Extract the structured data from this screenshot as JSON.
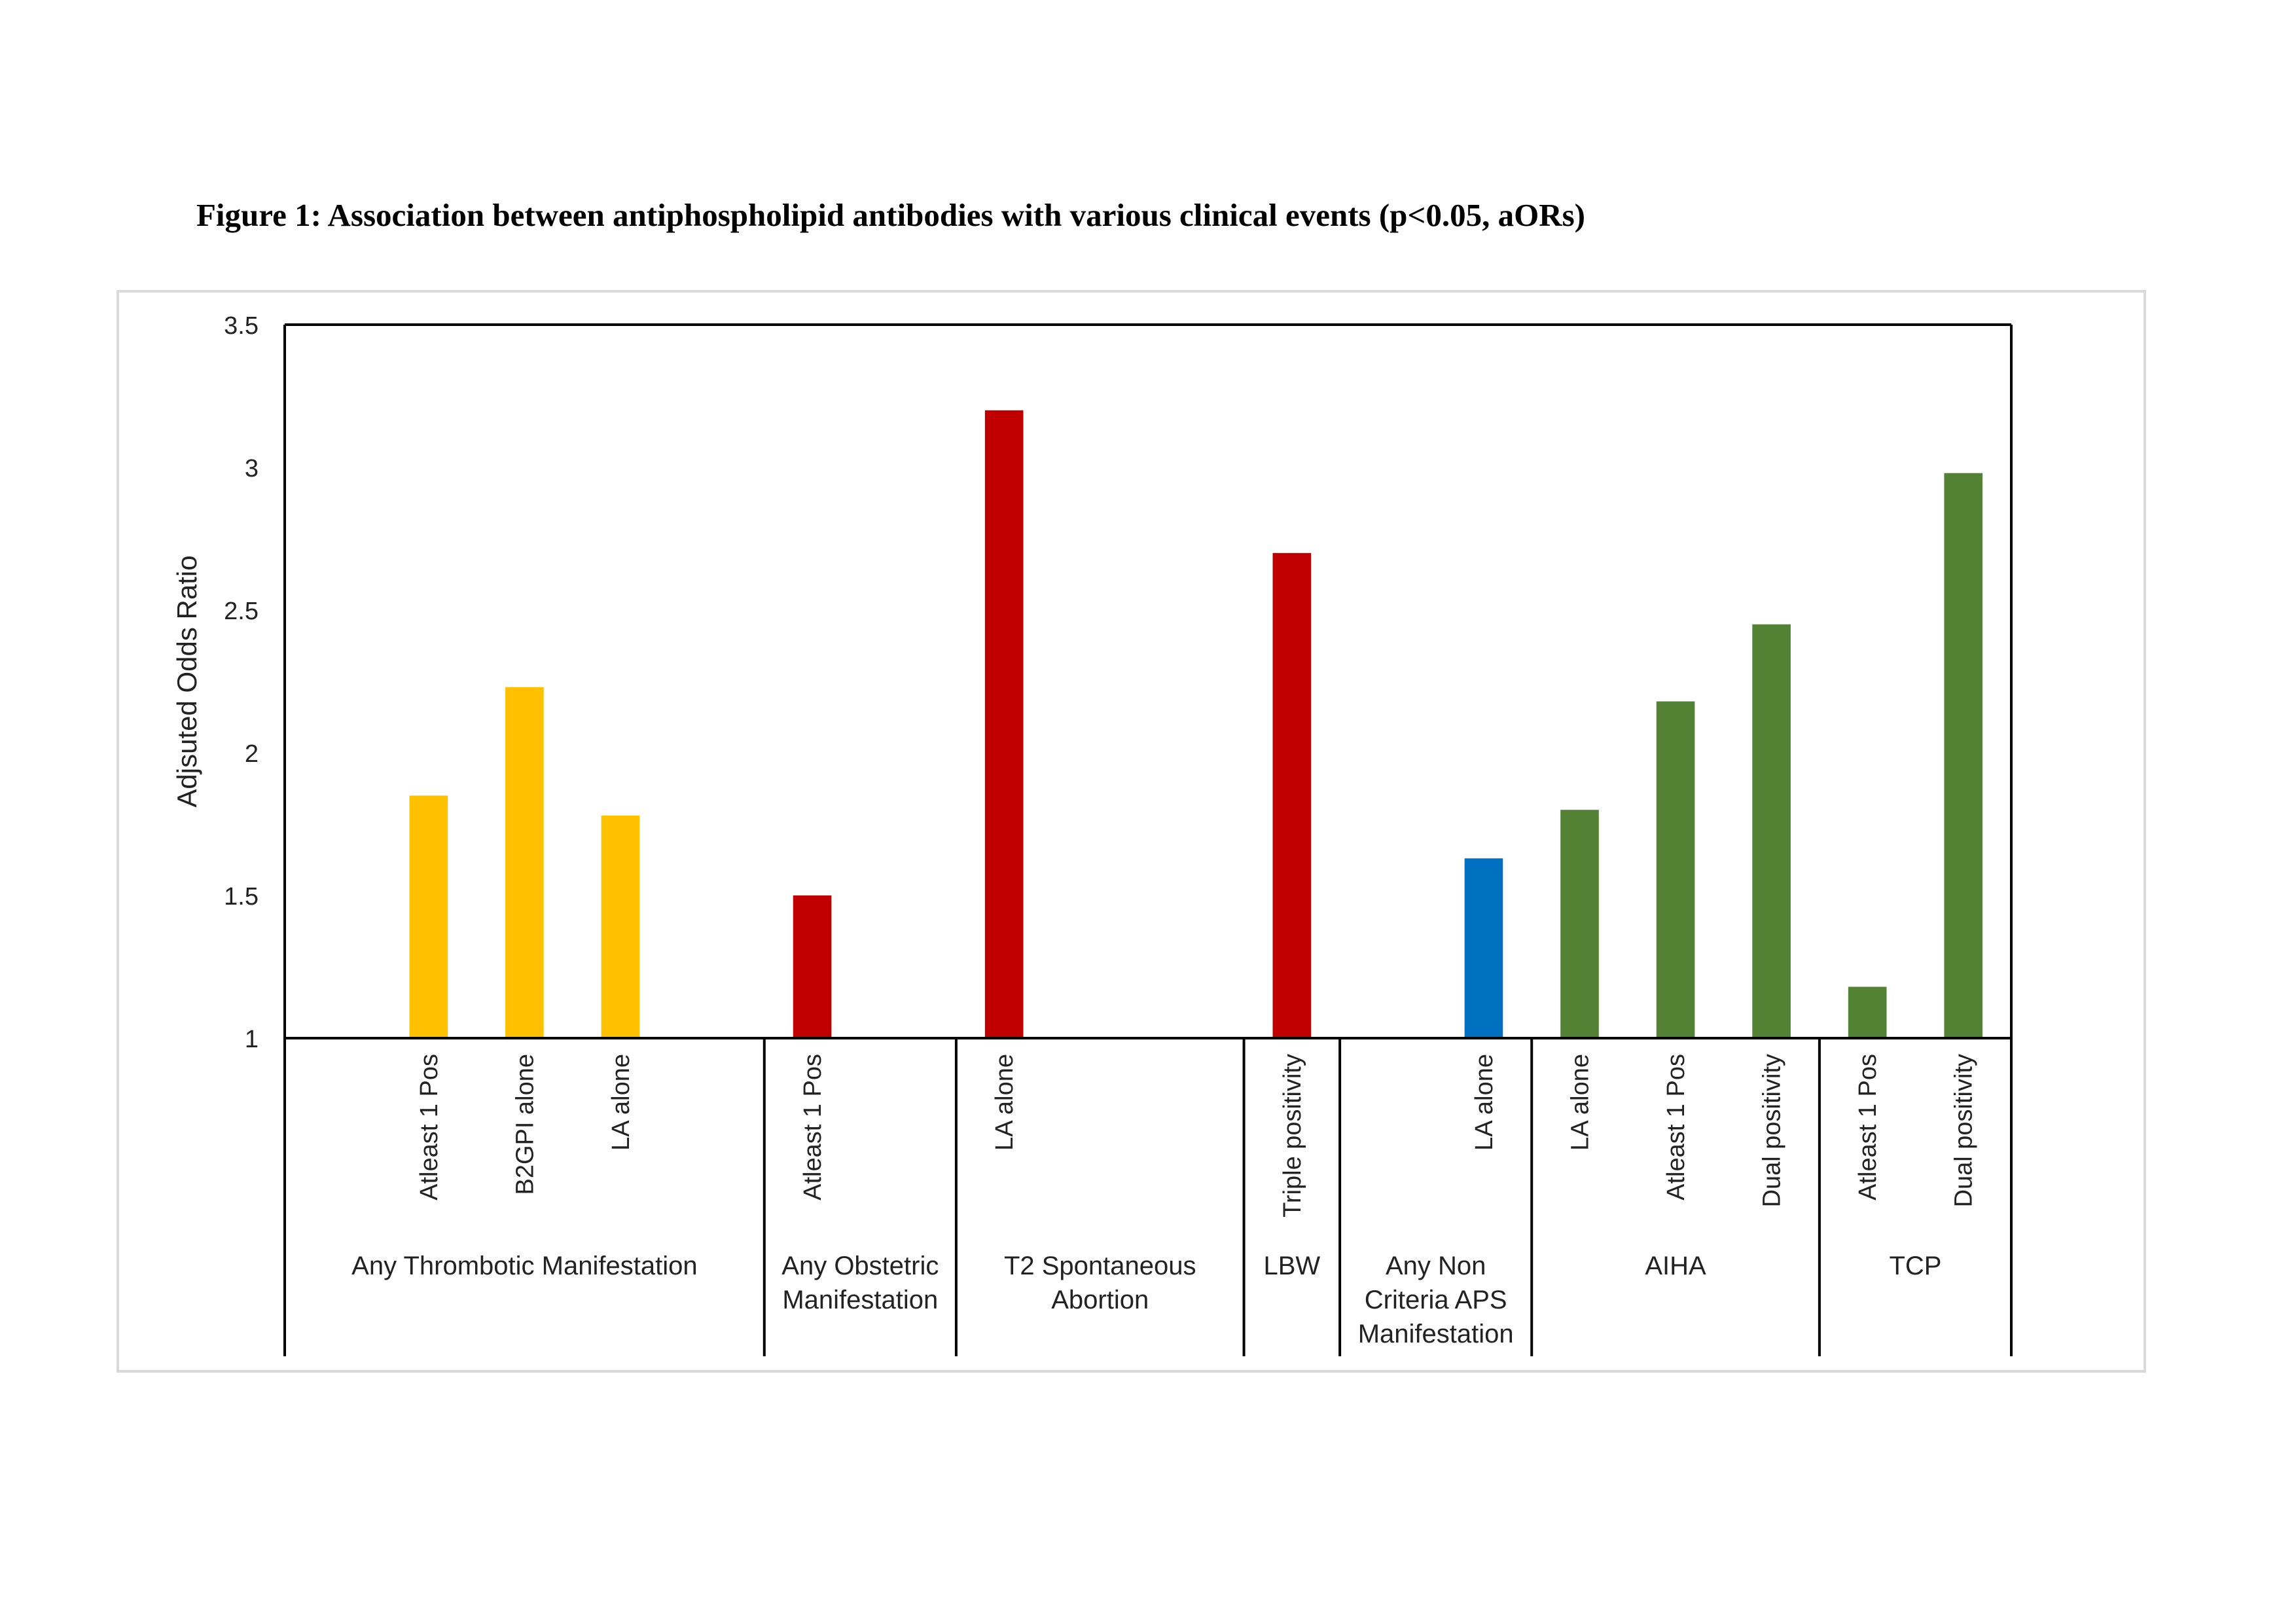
{
  "figure_title": "Figure 1: Association between antiphospholipid antibodies with various clinical events (p<0.05, aORs)",
  "chart_data": {
    "type": "bar",
    "title": "",
    "ylabel": "Adjsuted Odds Ratio",
    "xlabel": "",
    "ylim": [
      1,
      3.5
    ],
    "yticks": [
      "1",
      "1.5",
      "2",
      "2.5",
      "3",
      "3.5"
    ],
    "ytick_values": [
      1,
      1.5,
      2,
      2.5,
      3,
      3.5
    ],
    "grid": false,
    "legend": "none",
    "colors": {
      "yellow": "#FFC000",
      "red": "#C00000",
      "blue": "#0070C0",
      "green": "#548235"
    },
    "groups": [
      {
        "name": "Any Thrombotic Manifestation",
        "name_lines": [
          "Any Thrombotic Manifestation"
        ],
        "slots": 5
      },
      {
        "name": "Any Obstetric Manifestation",
        "name_lines": [
          "Any Obstetric",
          "Manifestation"
        ],
        "slots": 2
      },
      {
        "name": "T2 Spontaneous Abortion",
        "name_lines": [
          "T2 Spontaneous",
          "Abortion"
        ],
        "slots": 3
      },
      {
        "name": "LBW",
        "name_lines": [
          "LBW"
        ],
        "slots": 1
      },
      {
        "name": "Any Non Criteria APS Manifestation",
        "name_lines": [
          "Any Non",
          "Criteria APS",
          "Manifestation"
        ],
        "slots": 2
      },
      {
        "name": "AIHA",
        "name_lines": [
          "AIHA"
        ],
        "slots": 3
      },
      {
        "name": "TCP",
        "name_lines": [
          "TCP"
        ],
        "slots": 2
      }
    ],
    "bars": [
      {
        "label": "Atleast 1 Pos",
        "group": "Any Thrombotic Manifestation",
        "value": 1.85,
        "color": "#FFC000",
        "slot": 1
      },
      {
        "label": "B2GPI alone",
        "group": "Any Thrombotic Manifestation",
        "value": 2.23,
        "color": "#FFC000",
        "slot": 2
      },
      {
        "label": "LA alone",
        "group": "Any Thrombotic Manifestation",
        "value": 1.78,
        "color": "#FFC000",
        "slot": 3
      },
      {
        "label": "Atleast 1 Pos",
        "group": "Any Obstetric Manifestation",
        "value": 1.5,
        "color": "#C00000",
        "slot": 5
      },
      {
        "label": "LA alone",
        "group": "T2 Spontaneous Abortion",
        "value": 3.2,
        "color": "#C00000",
        "slot": 7
      },
      {
        "label": "Triple positivity",
        "group": "LBW",
        "value": 2.7,
        "color": "#C00000",
        "slot": 10
      },
      {
        "label": "LA alone",
        "group": "Any Non Criteria APS Manifestation",
        "value": 1.63,
        "color": "#0070C0",
        "slot": 12
      },
      {
        "label": "LA alone",
        "group": "AIHA",
        "value": 1.8,
        "color": "#548235",
        "slot": 13
      },
      {
        "label": "Atleast 1 Pos",
        "group": "AIHA",
        "value": 2.18,
        "color": "#548235",
        "slot": 14
      },
      {
        "label": "Dual positivity",
        "group": "AIHA",
        "value": 2.45,
        "color": "#548235",
        "slot": 15
      },
      {
        "label": "Atleast 1 Pos",
        "group": "TCP",
        "value": 1.18,
        "color": "#548235",
        "slot": 16
      },
      {
        "label": "Dual positivity",
        "group": "TCP",
        "value": 2.98,
        "color": "#548235",
        "slot": 17
      }
    ],
    "total_slots": 18
  }
}
